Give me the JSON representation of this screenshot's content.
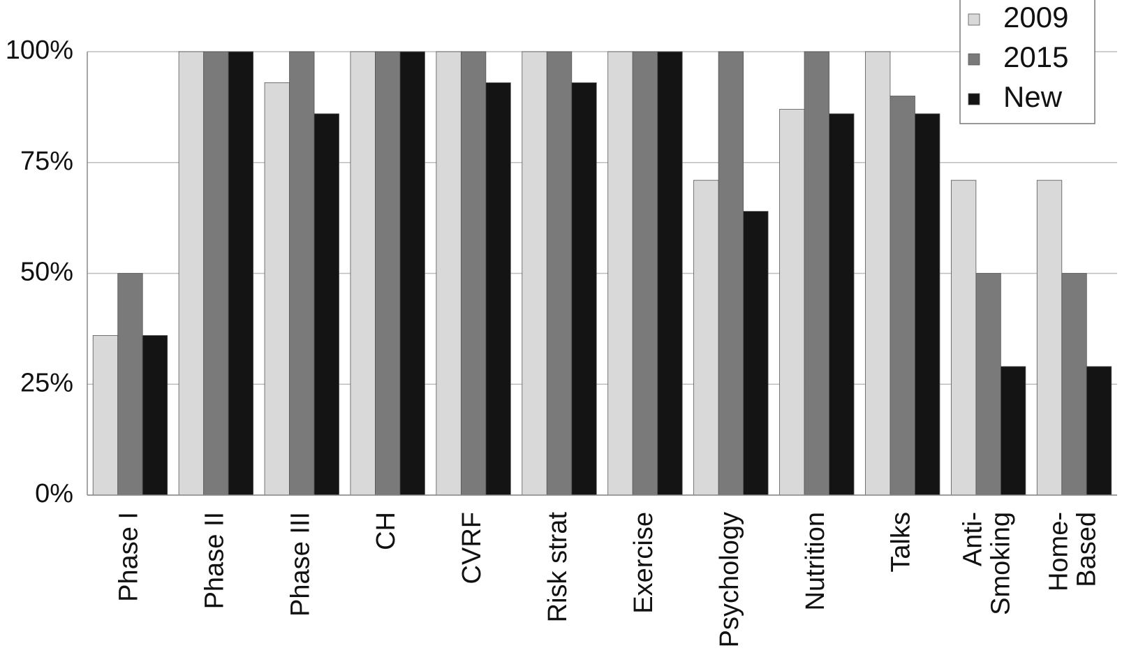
{
  "chart_data": {
    "type": "bar",
    "categories": [
      "Phase I",
      "Phase II",
      "Phase III",
      "CH",
      "CVRF",
      "Risk strat",
      "Exercise",
      "Psychology",
      "Nutrition",
      "Talks",
      "Anti-\nSmoking",
      "Home-\nBased"
    ],
    "series": [
      {
        "name": "2009",
        "color": "#d9d9d9",
        "values": [
          36,
          100,
          93,
          100,
          100,
          100,
          100,
          71,
          87,
          100,
          71,
          71
        ]
      },
      {
        "name": "2015",
        "color": "#7a7a7a",
        "values": [
          50,
          100,
          100,
          100,
          100,
          100,
          100,
          100,
          100,
          90,
          50,
          50
        ]
      },
      {
        "name": "New",
        "color": "#141414",
        "values": [
          36,
          100,
          86,
          100,
          93,
          93,
          100,
          64,
          86,
          86,
          29,
          29
        ]
      }
    ],
    "ylim": [
      0,
      100
    ],
    "yticks": [
      {
        "value": 0,
        "label": "0%"
      },
      {
        "value": 25,
        "label": "25%"
      },
      {
        "value": 50,
        "label": "50%"
      },
      {
        "value": 75,
        "label": "75%"
      },
      {
        "value": 100,
        "label": "100%"
      }
    ],
    "grid": true,
    "legend": "top-right"
  }
}
